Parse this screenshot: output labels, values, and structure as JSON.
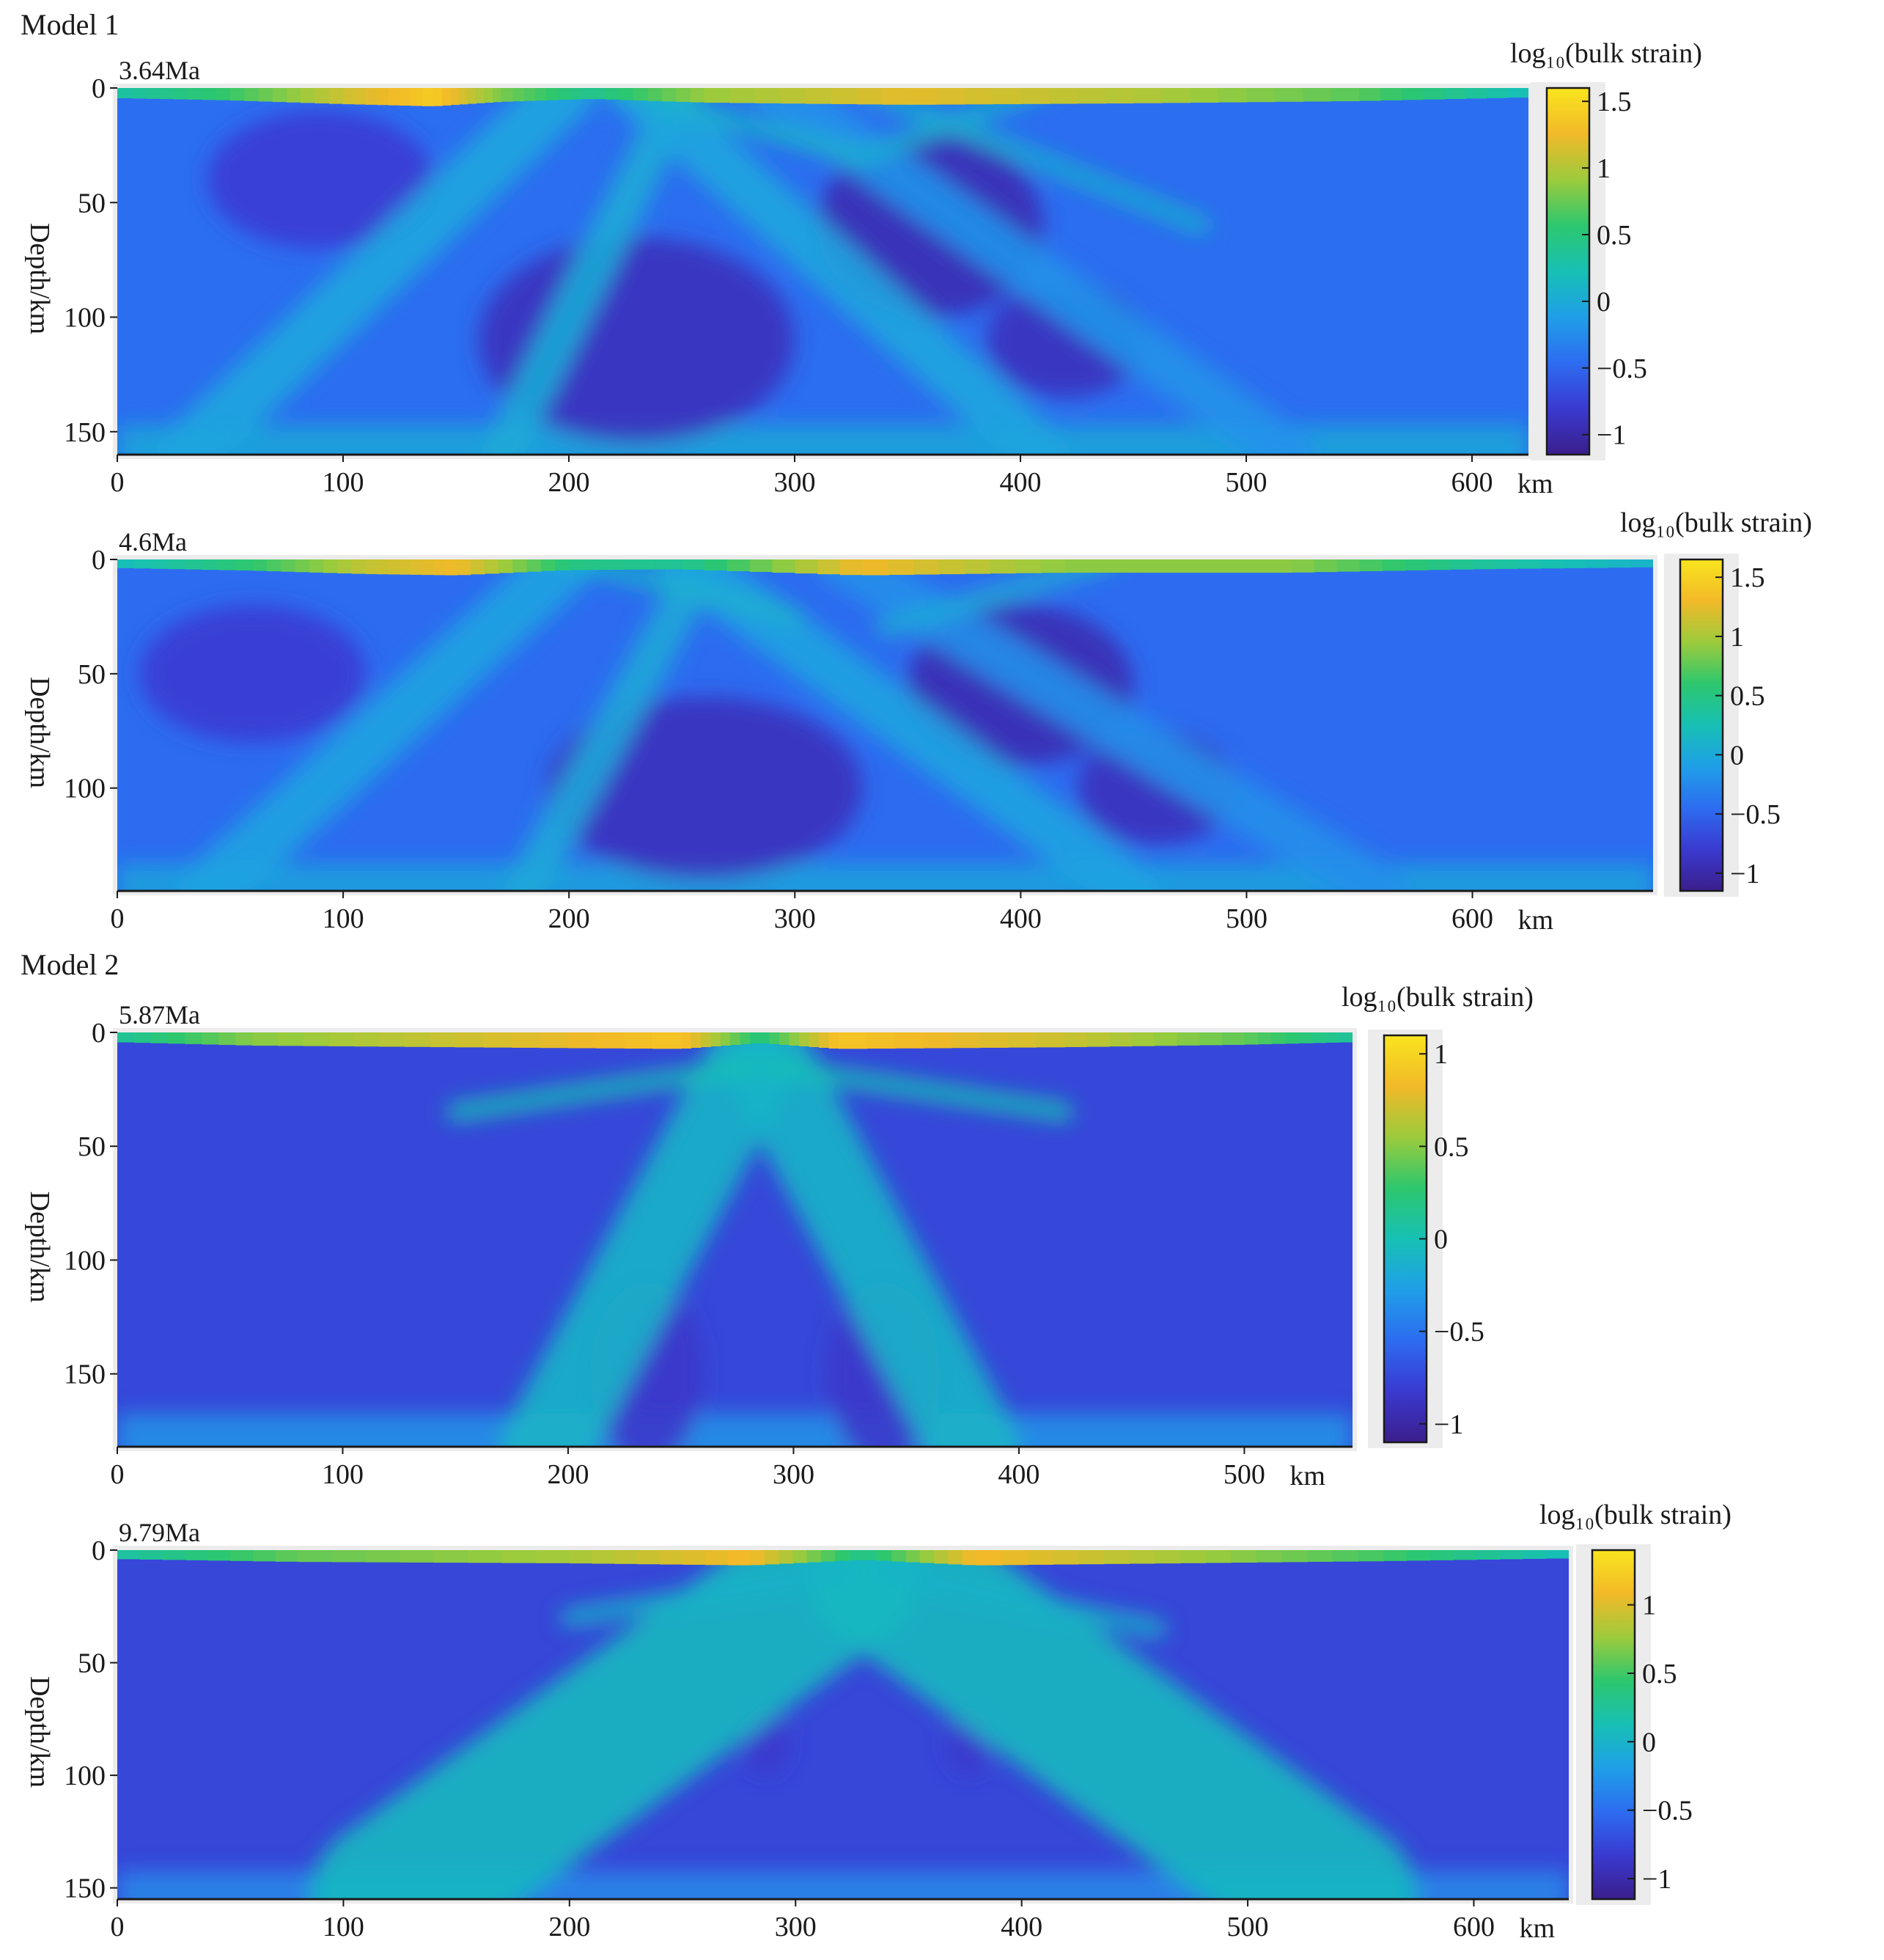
{
  "figure": {
    "model_labels": [
      "Model 1",
      "Model 2"
    ]
  },
  "colormap": [
    "#3b1e8c",
    "#3a3ad0",
    "#2d6cf0",
    "#1f9fe8",
    "#17c0b4",
    "#2dc76e",
    "#9ccb3c",
    "#f2b928",
    "#f9e51e"
  ],
  "chart_data": [
    {
      "type": "heatmap",
      "model": "Model 1",
      "time_label": "3.64Ma",
      "ylabel": "Depth/km",
      "xunit": "km",
      "colorbar_title": "log₁₀(bulk strain)",
      "x_range": [
        0,
        625
      ],
      "y_range": [
        0,
        160
      ],
      "x_ticks": [
        0,
        100,
        200,
        300,
        400,
        500,
        600
      ],
      "x_tick_labels": [
        "0",
        "100",
        "200",
        "300",
        "400",
        "500",
        "600"
      ],
      "y_ticks": [
        0,
        50,
        100,
        150
      ],
      "y_tick_labels": [
        "0",
        "50",
        "100",
        "150"
      ],
      "cbar_range": [
        -1.15,
        1.6
      ],
      "cbar_ticks": [
        1.5,
        1,
        0.5,
        0,
        -0.5,
        -1
      ],
      "cbar_tick_labels": [
        "1.5",
        "1",
        "0.5",
        "0",
        "−0.5",
        "−1"
      ],
      "background": -0.45,
      "shear_bands": [
        {
          "x0": 200,
          "y0": 0,
          "x1": 30,
          "y1": 160,
          "v": -0.05,
          "w": 26
        },
        {
          "x0": 250,
          "y0": 0,
          "x1": 170,
          "y1": 160,
          "v": 0.0,
          "w": 18
        },
        {
          "x0": 230,
          "y0": 0,
          "x1": 410,
          "y1": 160,
          "v": -0.05,
          "w": 24
        },
        {
          "x0": 290,
          "y0": 0,
          "x1": 520,
          "y1": 160,
          "v": -0.2,
          "w": 22
        },
        {
          "x0": 330,
          "y0": 0,
          "x1": 480,
          "y1": 60,
          "v": 0.05,
          "w": 8
        },
        {
          "x0": 220,
          "y0": 0,
          "x1": 330,
          "y1": 30,
          "v": 0.1,
          "w": 8
        },
        {
          "x0": 410,
          "y0": 0,
          "x1": 330,
          "y1": 30,
          "v": 0.05,
          "w": 8
        }
      ],
      "low_zones": [
        {
          "x": 230,
          "y": 110,
          "rx": 70,
          "ry": 45,
          "v": -0.9
        },
        {
          "x": 360,
          "y": 60,
          "rx": 50,
          "ry": 40,
          "v": -0.95
        },
        {
          "x": 90,
          "y": 40,
          "rx": 50,
          "ry": 30,
          "v": -0.8
        },
        {
          "x": 420,
          "y": 110,
          "rx": 35,
          "ry": 25,
          "v": -0.9
        }
      ],
      "surface": [
        [
          0,
          0.3
        ],
        [
          50,
          0.6
        ],
        [
          100,
          1.1
        ],
        [
          140,
          1.4
        ],
        [
          170,
          0.8
        ],
        [
          210,
          0.4
        ],
        [
          260,
          0.9
        ],
        [
          350,
          1.2
        ],
        [
          450,
          1.0
        ],
        [
          550,
          0.7
        ],
        [
          625,
          0.2
        ]
      ]
    },
    {
      "type": "heatmap",
      "model": "Model 1",
      "time_label": "4.6Ma",
      "ylabel": "Depth/km",
      "xunit": "km",
      "colorbar_title": "log₁₀(bulk strain)",
      "x_range": [
        0,
        680
      ],
      "y_range": [
        0,
        145
      ],
      "x_ticks": [
        0,
        100,
        200,
        300,
        400,
        500,
        600
      ],
      "x_tick_labels": [
        "0",
        "100",
        "200",
        "300",
        "400",
        "500",
        "600"
      ],
      "y_ticks": [
        0,
        50,
        100
      ],
      "y_tick_labels": [
        "0",
        "50",
        "100"
      ],
      "cbar_range": [
        -1.15,
        1.65
      ],
      "cbar_ticks": [
        1.5,
        1,
        0.5,
        0,
        -0.5,
        -1
      ],
      "cbar_tick_labels": [
        "1.5",
        "1",
        "0.5",
        "0",
        "−0.5",
        "−1"
      ],
      "background": -0.45,
      "shear_bands": [
        {
          "x0": 200,
          "y0": 0,
          "x1": 40,
          "y1": 145,
          "v": -0.05,
          "w": 26
        },
        {
          "x0": 260,
          "y0": 0,
          "x1": 180,
          "y1": 145,
          "v": 0.0,
          "w": 18
        },
        {
          "x0": 250,
          "y0": 0,
          "x1": 450,
          "y1": 145,
          "v": -0.05,
          "w": 24
        },
        {
          "x0": 320,
          "y0": 0,
          "x1": 560,
          "y1": 145,
          "v": -0.2,
          "w": 22
        },
        {
          "x0": 200,
          "y0": 0,
          "x1": 300,
          "y1": 25,
          "v": 0.1,
          "w": 8
        },
        {
          "x0": 440,
          "y0": 0,
          "x1": 340,
          "y1": 30,
          "v": 0.05,
          "w": 8
        }
      ],
      "low_zones": [
        {
          "x": 260,
          "y": 100,
          "rx": 70,
          "ry": 40,
          "v": -0.9
        },
        {
          "x": 400,
          "y": 55,
          "rx": 50,
          "ry": 35,
          "v": -0.95
        },
        {
          "x": 60,
          "y": 50,
          "rx": 50,
          "ry": 30,
          "v": -0.8
        },
        {
          "x": 460,
          "y": 100,
          "rx": 35,
          "ry": 25,
          "v": -0.9
        }
      ],
      "surface": [
        [
          0,
          0.2
        ],
        [
          60,
          0.6
        ],
        [
          110,
          1.1
        ],
        [
          150,
          1.3
        ],
        [
          200,
          0.5
        ],
        [
          250,
          0.4
        ],
        [
          330,
          1.3
        ],
        [
          420,
          0.9
        ],
        [
          520,
          0.9
        ],
        [
          600,
          0.4
        ],
        [
          680,
          0.1
        ]
      ]
    },
    {
      "type": "heatmap",
      "model": "Model 2",
      "time_label": "5.87Ma",
      "ylabel": "Depth/km",
      "xunit": "km",
      "colorbar_title": "log₁₀(bulk strain)",
      "x_range": [
        0,
        548
      ],
      "y_range": [
        0,
        182
      ],
      "x_ticks": [
        0,
        100,
        200,
        300,
        400,
        500
      ],
      "x_tick_labels": [
        "0",
        "100",
        "200",
        "300",
        "400",
        "500"
      ],
      "y_ticks": [
        0,
        50,
        100,
        150
      ],
      "y_tick_labels": [
        "0",
        "50",
        "100",
        "150"
      ],
      "cbar_range": [
        -1.1,
        1.1
      ],
      "cbar_ticks": [
        1,
        0.5,
        0,
        -0.5,
        -1
      ],
      "cbar_tick_labels": [
        "1",
        "0.5",
        "0",
        "−0.5",
        "−1"
      ],
      "background": -0.75,
      "shear_bands": [
        {
          "x0": 280,
          "y0": 15,
          "x1": 190,
          "y1": 182,
          "v": -0.1,
          "w": 40
        },
        {
          "x0": 290,
          "y0": 15,
          "x1": 380,
          "y1": 182,
          "v": -0.1,
          "w": 40
        },
        {
          "x0": 280,
          "y0": 15,
          "x1": 150,
          "y1": 35,
          "v": 0.0,
          "w": 8
        },
        {
          "x0": 290,
          "y0": 15,
          "x1": 420,
          "y1": 35,
          "v": 0.0,
          "w": 8
        }
      ],
      "low_zones": [
        {
          "x": 235,
          "y": 150,
          "rx": 25,
          "ry": 40,
          "v": -0.85
        },
        {
          "x": 340,
          "y": 150,
          "rx": 25,
          "ry": 40,
          "v": -0.85
        }
      ],
      "surface": [
        [
          0,
          0.1
        ],
        [
          60,
          0.5
        ],
        [
          150,
          0.7
        ],
        [
          250,
          0.9
        ],
        [
          285,
          0.2
        ],
        [
          320,
          0.9
        ],
        [
          420,
          0.7
        ],
        [
          500,
          0.4
        ],
        [
          548,
          0.1
        ]
      ]
    },
    {
      "type": "heatmap",
      "model": "Model 2",
      "time_label": "9.79Ma",
      "ylabel": "Depth/km",
      "xunit": "km",
      "colorbar_title": "log₁₀(bulk strain)",
      "x_range": [
        0,
        642
      ],
      "y_range": [
        0,
        155
      ],
      "x_ticks": [
        0,
        100,
        200,
        300,
        400,
        500,
        600
      ],
      "x_tick_labels": [
        "0",
        "100",
        "200",
        "300",
        "400",
        "500",
        "600"
      ],
      "y_ticks": [
        0,
        50,
        100,
        150
      ],
      "y_tick_labels": [
        "0",
        "50",
        "100",
        "150"
      ],
      "cbar_range": [
        -1.15,
        1.4
      ],
      "cbar_ticks": [
        1,
        0.5,
        0,
        -0.5,
        -1
      ],
      "cbar_tick_labels": [
        "1",
        "0.5",
        "0",
        "−0.5",
        "−1"
      ],
      "background": -0.75,
      "shear_bands": [
        {
          "x0": 320,
          "y0": 10,
          "x1": 120,
          "y1": 155,
          "v": 0.05,
          "w": 70
        },
        {
          "x0": 340,
          "y0": 10,
          "x1": 540,
          "y1": 155,
          "v": 0.05,
          "w": 70
        },
        {
          "x0": 320,
          "y0": 10,
          "x1": 200,
          "y1": 30,
          "v": 0.0,
          "w": 8
        },
        {
          "x0": 340,
          "y0": 10,
          "x1": 460,
          "y1": 35,
          "v": 0.0,
          "w": 8
        }
      ],
      "low_zones": [
        {
          "x": 287,
          "y": 85,
          "rx": 10,
          "ry": 14,
          "v": -0.85
        },
        {
          "x": 377,
          "y": 85,
          "rx": 10,
          "ry": 14,
          "v": -0.85
        }
      ],
      "surface": [
        [
          0,
          0.2
        ],
        [
          80,
          0.6
        ],
        [
          200,
          0.8
        ],
        [
          280,
          1.1
        ],
        [
          330,
          0.3
        ],
        [
          380,
          1.1
        ],
        [
          470,
          0.8
        ],
        [
          560,
          0.5
        ],
        [
          642,
          0.1
        ]
      ]
    }
  ]
}
